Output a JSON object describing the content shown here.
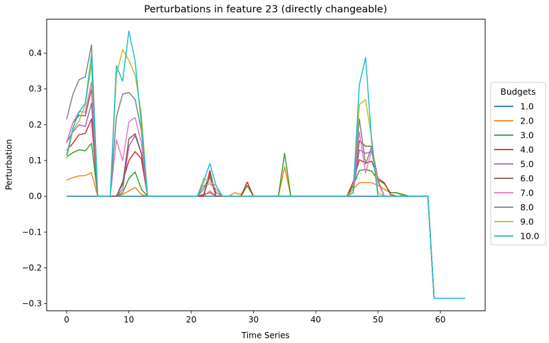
{
  "chart_data": {
    "type": "line",
    "title": "Perturbations in feature 23 (directly changeable)",
    "xlabel": "Time Series",
    "ylabel": "Perturbation",
    "xlim": [
      -3.2,
      67.2
    ],
    "ylim": [
      -0.32,
      0.495
    ],
    "xticks": [
      0,
      10,
      20,
      30,
      40,
      50,
      60
    ],
    "yticks": [
      -0.3,
      -0.2,
      -0.1,
      0.0,
      0.1,
      0.2,
      0.3,
      0.4
    ],
    "ytick_labels": [
      "−0.3",
      "−0.2",
      "−0.1",
      "0.0",
      "0.1",
      "0.2",
      "0.3",
      "0.4"
    ],
    "grid": false,
    "legend": {
      "title": "Budgets",
      "placement": "right-outside"
    },
    "x": [
      0,
      1,
      2,
      3,
      4,
      5,
      6,
      7,
      8,
      9,
      10,
      11,
      12,
      13,
      14,
      15,
      16,
      17,
      18,
      19,
      20,
      21,
      22,
      23,
      24,
      25,
      26,
      27,
      28,
      29,
      30,
      31,
      32,
      33,
      34,
      35,
      36,
      37,
      38,
      39,
      40,
      41,
      42,
      43,
      44,
      45,
      46,
      47,
      48,
      49,
      50,
      51,
      52,
      53,
      54,
      55,
      56,
      57,
      58,
      59,
      60,
      61,
      62,
      63,
      64
    ],
    "series": [
      {
        "name": "1.0",
        "color": "#1f77b4",
        "values": [
          0,
          0,
          0,
          0,
          0,
          0,
          0,
          0,
          0,
          0,
          0,
          0,
          0,
          0,
          0,
          0,
          0,
          0,
          0,
          0,
          0,
          0,
          0,
          0,
          0,
          0,
          0,
          0,
          0,
          0,
          0,
          0,
          0,
          0,
          0,
          0,
          0,
          0,
          0,
          0,
          0,
          0,
          0,
          0,
          0,
          0,
          0,
          0,
          0,
          0,
          0,
          0,
          0,
          0,
          0,
          0,
          0,
          0,
          0,
          -0.285,
          -0.285,
          -0.285,
          -0.285,
          -0.285,
          -0.285
        ]
      },
      {
        "name": "2.0",
        "color": "#ff7f0e",
        "values": [
          0.045,
          0.052,
          0.057,
          0.058,
          0.066,
          0,
          0,
          0,
          0,
          0.005,
          0.015,
          0.025,
          0.005,
          0,
          0,
          0,
          0,
          0,
          0,
          0,
          0,
          0,
          0,
          0.015,
          0,
          0,
          0,
          0.01,
          0.005,
          0.03,
          0,
          0,
          0,
          0,
          0,
          0.082,
          0,
          0,
          0,
          0,
          0,
          0,
          0,
          0,
          0,
          0,
          0.02,
          0.038,
          0.038,
          0.038,
          0.03,
          0.02,
          0.01,
          0.01,
          0.002,
          0,
          0,
          0,
          0,
          -0.285,
          -0.285,
          -0.285,
          -0.285,
          -0.285,
          -0.285
        ]
      },
      {
        "name": "3.0",
        "color": "#2ca02c",
        "values": [
          0.11,
          0.122,
          0.13,
          0.127,
          0.148,
          0,
          0,
          0,
          0,
          0.01,
          0.05,
          0.068,
          0.02,
          0,
          0,
          0,
          0,
          0,
          0,
          0,
          0,
          0,
          0,
          0.066,
          0,
          0,
          0,
          0,
          0,
          0.03,
          0,
          0,
          0,
          0,
          0,
          0.12,
          0,
          0,
          0,
          0,
          0,
          0,
          0,
          0,
          0,
          0,
          0.03,
          0.072,
          0.075,
          0.07,
          0.045,
          0.035,
          0.01,
          0.01,
          0.005,
          0,
          0,
          0,
          0,
          -0.285,
          -0.285,
          -0.285,
          -0.285,
          -0.285,
          -0.285
        ]
      },
      {
        "name": "4.0",
        "color": "#d62728",
        "values": [
          0.128,
          0.148,
          0.172,
          0.176,
          0.216,
          0,
          0,
          0,
          0,
          0.04,
          0.1,
          0.125,
          0.105,
          0,
          0,
          0,
          0,
          0,
          0,
          0,
          0,
          0,
          0,
          0.072,
          0,
          0,
          0,
          0,
          0,
          0.04,
          0,
          0,
          0,
          0,
          0,
          0,
          0,
          0,
          0,
          0,
          0,
          0,
          0,
          0,
          0,
          0,
          0.04,
          0.102,
          0.093,
          0.098,
          0.05,
          0.038,
          0.005,
          0,
          0,
          0,
          0,
          0,
          0,
          -0.285,
          -0.285,
          -0.285,
          -0.285,
          -0.285,
          -0.285
        ]
      },
      {
        "name": "5.0",
        "color": "#9467bd",
        "values": [
          0.15,
          0.18,
          0.2,
          0.195,
          0.26,
          0,
          0,
          0,
          0,
          0.02,
          0.14,
          0.17,
          0.12,
          0,
          0,
          0,
          0,
          0,
          0,
          0,
          0,
          0,
          0.005,
          0.01,
          0,
          0,
          0,
          0,
          0,
          0,
          0,
          0,
          0,
          0,
          0,
          0,
          0,
          0,
          0,
          0,
          0,
          0,
          0,
          0,
          0,
          0,
          0.01,
          0.13,
          0.12,
          0.125,
          0.04,
          0,
          0,
          0,
          0,
          0,
          0,
          0,
          0,
          -0.285,
          -0.285,
          -0.285,
          -0.285,
          -0.285,
          -0.285
        ]
      },
      {
        "name": "6.0",
        "color": "#8c564b",
        "values": [
          0.15,
          0.205,
          0.226,
          0.225,
          0.3,
          0,
          0,
          0,
          0,
          0.035,
          0.16,
          0.175,
          0.12,
          0,
          0,
          0,
          0,
          0,
          0,
          0,
          0,
          0,
          0.005,
          0.055,
          0,
          0,
          0,
          0,
          0,
          0,
          0,
          0,
          0,
          0,
          0,
          0,
          0,
          0,
          0,
          0,
          0,
          0,
          0,
          0,
          0,
          0,
          0.02,
          0.155,
          0.14,
          0.14,
          0.045,
          0,
          0,
          0,
          0,
          0,
          0,
          0,
          0,
          -0.285,
          -0.285,
          -0.285,
          -0.285,
          -0.285,
          -0.285
        ]
      },
      {
        "name": "7.0",
        "color": "#e377c2",
        "values": [
          0.148,
          0.205,
          0.237,
          0.235,
          0.32,
          0,
          0,
          0,
          0.158,
          0.1,
          0.208,
          0.22,
          0.15,
          0,
          0,
          0,
          0,
          0,
          0,
          0,
          0,
          0,
          0.03,
          0.035,
          0.02,
          0,
          0,
          0,
          0,
          0,
          0,
          0,
          0,
          0,
          0,
          0,
          0,
          0,
          0,
          0,
          0,
          0,
          0,
          0,
          0,
          0,
          0.01,
          0.18,
          0.065,
          0.13,
          0.04,
          0,
          0,
          0,
          0,
          0,
          0,
          0,
          0,
          -0.285,
          -0.285,
          -0.285,
          -0.285,
          -0.285,
          -0.285
        ]
      },
      {
        "name": "8.0",
        "color": "#7f7f7f",
        "values": [
          0.215,
          0.285,
          0.326,
          0.334,
          0.423,
          0,
          0,
          0,
          0.222,
          0.286,
          0.29,
          0.271,
          0.185,
          0,
          0,
          0,
          0,
          0,
          0,
          0,
          0,
          0,
          0.02,
          0.06,
          0.01,
          0,
          0,
          0,
          0,
          0,
          0,
          0,
          0,
          0,
          0,
          0,
          0,
          0,
          0,
          0,
          0,
          0,
          0,
          0,
          0,
          0,
          0.02,
          0.216,
          0.09,
          0.14,
          0,
          0,
          0,
          0,
          0,
          0,
          0,
          0,
          0,
          -0.285,
          -0.285,
          -0.285,
          -0.285,
          -0.285,
          -0.285
        ]
      },
      {
        "name": "9.0",
        "color": "#bcbd22",
        "values": [
          0.105,
          0.185,
          0.21,
          0.255,
          0.37,
          0,
          0,
          0,
          0.34,
          0.41,
          0.38,
          0.34,
          0.23,
          0,
          0,
          0,
          0,
          0,
          0,
          0,
          0,
          0,
          0.05,
          0.04,
          0.03,
          0,
          0,
          0,
          0,
          0,
          0,
          0,
          0,
          0,
          0,
          0,
          0,
          0,
          0,
          0,
          0,
          0,
          0,
          0,
          0,
          0,
          0.02,
          0.256,
          0.27,
          0.16,
          0.01,
          0,
          0,
          0,
          0,
          0,
          0,
          0,
          0,
          -0.285,
          -0.285,
          -0.285,
          -0.285,
          -0.285,
          -0.285
        ]
      },
      {
        "name": "10.0",
        "color": "#17becf",
        "values": [
          0.115,
          0.19,
          0.235,
          0.26,
          0.395,
          0,
          0,
          0,
          0.365,
          0.322,
          0.462,
          0.378,
          0.2,
          0,
          0,
          0,
          0,
          0,
          0,
          0,
          0,
          0,
          0.04,
          0.092,
          0.03,
          0,
          0,
          0,
          0,
          0,
          0,
          0,
          0,
          0,
          0,
          0,
          0,
          0,
          0,
          0,
          0,
          0,
          0,
          0,
          0,
          0,
          0.01,
          0.312,
          0.388,
          0.15,
          0,
          0,
          0,
          0,
          0,
          0,
          0,
          0,
          0,
          -0.285,
          -0.285,
          -0.285,
          -0.285,
          -0.285,
          -0.285
        ]
      }
    ]
  }
}
